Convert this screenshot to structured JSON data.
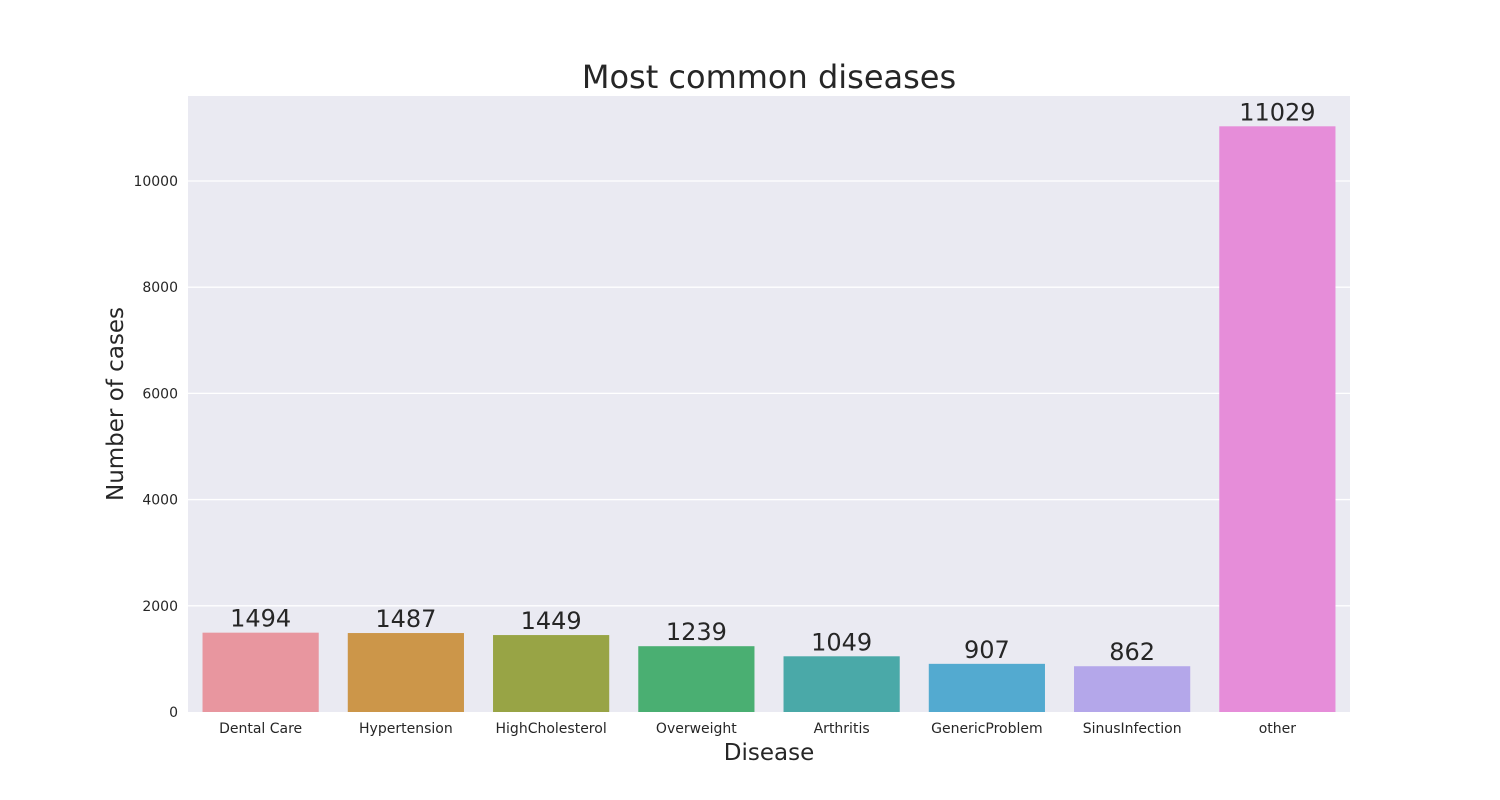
{
  "chart_data": {
    "type": "bar",
    "title": "Most common diseases",
    "xlabel": "Disease",
    "ylabel": "Number of cases",
    "categories": [
      "Dental Care",
      "Hypertension",
      "HighCholesterol",
      "Overweight",
      "Arthritis",
      "GenericProblem",
      "SinusInfection",
      "other"
    ],
    "values": [
      1494,
      1487,
      1449,
      1239,
      1049,
      907,
      862,
      11029
    ],
    "data_labels": [
      "1494",
      "1487",
      "1449",
      "1239",
      "1049",
      "907",
      "862",
      "11029"
    ],
    "colors": [
      "#e8969f",
      "#cc9649",
      "#98a445",
      "#4aaf72",
      "#4aa9a8",
      "#53aad0",
      "#b4a7ea",
      "#e68dd9"
    ],
    "ylim": [
      0,
      11600
    ],
    "yticks": [
      0,
      2000,
      4000,
      6000,
      8000,
      10000
    ],
    "ytick_labels": [
      "0",
      "2000",
      "4000",
      "6000",
      "8000",
      "10000"
    ],
    "grid": true,
    "legend": "none",
    "plot_background": "#eaeaf2"
  }
}
